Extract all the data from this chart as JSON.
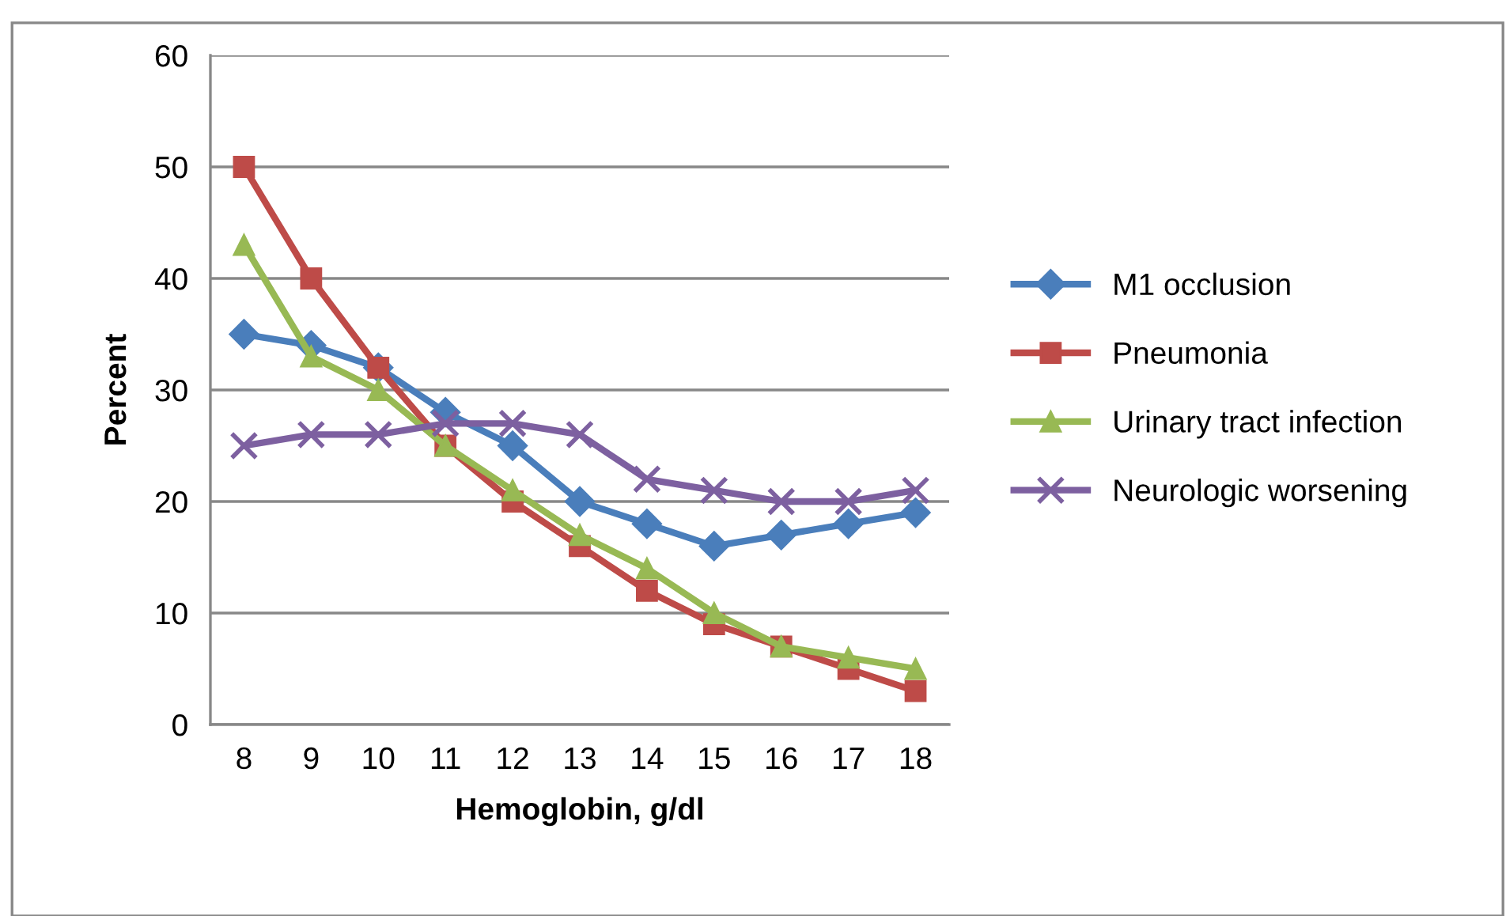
{
  "chart_data": {
    "type": "line",
    "xlabel": "Hemoglobin, g/dl",
    "ylabel": "Percent",
    "categories": [
      "8",
      "9",
      "10",
      "11",
      "12",
      "13",
      "14",
      "15",
      "16",
      "17",
      "18"
    ],
    "series": [
      {
        "name": "M1 occlusion",
        "color": "#4a7ebb",
        "marker": "diamond",
        "values": [
          35,
          34,
          32,
          28,
          25,
          20,
          18,
          16,
          17,
          18,
          19
        ]
      },
      {
        "name": "Pneumonia",
        "color": "#be4b48",
        "marker": "square",
        "values": [
          50,
          40,
          32,
          25,
          20,
          16,
          12,
          9,
          7,
          5,
          3
        ]
      },
      {
        "name": "Urinary tract infection",
        "color": "#98b954",
        "marker": "triangle",
        "values": [
          43,
          33,
          30,
          25,
          21,
          17,
          14,
          10,
          7,
          6,
          5
        ]
      },
      {
        "name": "Neurologic worsening",
        "color": "#7d60a0",
        "marker": "cross",
        "values": [
          25,
          26,
          26,
          27,
          27,
          26,
          22,
          21,
          20,
          20,
          21
        ]
      }
    ],
    "ylim": [
      0,
      60
    ],
    "yticks": [
      0,
      10,
      20,
      30,
      40,
      50,
      60
    ],
    "grid": "y",
    "legend": "right"
  }
}
